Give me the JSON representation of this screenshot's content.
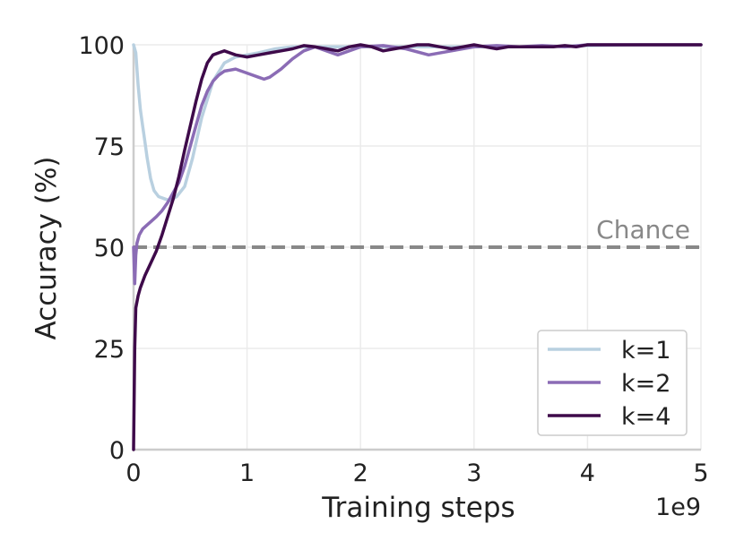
{
  "chart_data": {
    "type": "line",
    "xlabel": "Training steps",
    "ylabel": "Accuracy (%)",
    "x_offset_label": "1e9",
    "xlim": [
      0,
      5
    ],
    "ylim": [
      0,
      100
    ],
    "x_ticks": [
      "0",
      "1",
      "2",
      "3",
      "4",
      "5"
    ],
    "y_ticks": [
      "0",
      "25",
      "50",
      "75",
      "100"
    ],
    "grid": true,
    "legend_position": "lower-right",
    "reference_line": {
      "label": "Chance",
      "value": 50,
      "color": "#888888"
    },
    "series": [
      {
        "name": "k=1",
        "color": "#b9d0e0",
        "x": [
          0.0,
          0.02,
          0.04,
          0.06,
          0.08,
          0.1,
          0.12,
          0.15,
          0.18,
          0.22,
          0.27,
          0.32,
          0.38,
          0.45,
          0.52,
          0.6,
          0.7,
          0.8,
          0.9,
          1.0,
          1.1,
          1.25,
          1.4,
          1.6,
          1.8,
          2.0,
          2.3,
          2.6,
          3.0,
          3.5,
          4.0,
          4.5,
          5.0
        ],
        "y": [
          100,
          98,
          90,
          84,
          80,
          76,
          72,
          67,
          64,
          62.5,
          62,
          61.5,
          62.5,
          65,
          72,
          82,
          91,
          95.5,
          97,
          97.5,
          98,
          99,
          99.5,
          99.5,
          99.5,
          99.5,
          99.5,
          99.5,
          99.5,
          99.5,
          99.8,
          100,
          100
        ]
      },
      {
        "name": "k=2",
        "color": "#8b6cb5",
        "x": [
          0.0,
          0.01,
          0.02,
          0.03,
          0.05,
          0.08,
          0.12,
          0.16,
          0.2,
          0.25,
          0.3,
          0.35,
          0.4,
          0.45,
          0.5,
          0.55,
          0.6,
          0.65,
          0.7,
          0.75,
          0.8,
          0.9,
          1.0,
          1.1,
          1.15,
          1.2,
          1.3,
          1.4,
          1.5,
          1.6,
          1.7,
          1.8,
          1.9,
          2.0,
          2.2,
          2.4,
          2.6,
          2.8,
          3.0,
          3.2,
          3.4,
          3.6,
          3.8,
          4.0,
          4.2,
          4.5,
          5.0
        ],
        "y": [
          50,
          41,
          48,
          51,
          53,
          54.5,
          55.5,
          56.5,
          57.5,
          59,
          61,
          63.5,
          66,
          70,
          75,
          80,
          85,
          88.5,
          91,
          92.5,
          93.5,
          94,
          93,
          92,
          91.5,
          92,
          94,
          96.5,
          98.5,
          99.5,
          98.5,
          97.5,
          98.5,
          99.5,
          99.8,
          99,
          97.5,
          98.5,
          99.5,
          99.8,
          99.5,
          99.8,
          99.5,
          100,
          100,
          100,
          100
        ]
      },
      {
        "name": "k=4",
        "color": "#3e0a4a",
        "x": [
          0.0,
          0.01,
          0.02,
          0.04,
          0.06,
          0.1,
          0.15,
          0.2,
          0.25,
          0.3,
          0.35,
          0.4,
          0.45,
          0.5,
          0.55,
          0.6,
          0.65,
          0.7,
          0.75,
          0.8,
          0.9,
          1.0,
          1.1,
          1.2,
          1.3,
          1.4,
          1.5,
          1.6,
          1.7,
          1.8,
          1.9,
          2.0,
          2.1,
          2.2,
          2.3,
          2.4,
          2.5,
          2.6,
          2.7,
          2.8,
          2.9,
          3.0,
          3.1,
          3.2,
          3.3,
          3.4,
          3.5,
          3.6,
          3.7,
          3.8,
          3.9,
          4.0,
          4.2,
          4.5,
          5.0
        ],
        "y": [
          0,
          25,
          35,
          38,
          40,
          43,
          46,
          49,
          53,
          57.5,
          62,
          67.5,
          74,
          80,
          86,
          91.5,
          95.5,
          97.5,
          98,
          98.5,
          97.5,
          97,
          97.5,
          98,
          98.5,
          99,
          99.8,
          99.5,
          99,
          98.5,
          99.5,
          100,
          99.5,
          98.5,
          99,
          99.5,
          100,
          100,
          99.5,
          99,
          99.5,
          100,
          99.5,
          99,
          99.5,
          99.5,
          99.5,
          99.5,
          99.5,
          99.8,
          99.5,
          100,
          100,
          100,
          100
        ]
      }
    ]
  }
}
